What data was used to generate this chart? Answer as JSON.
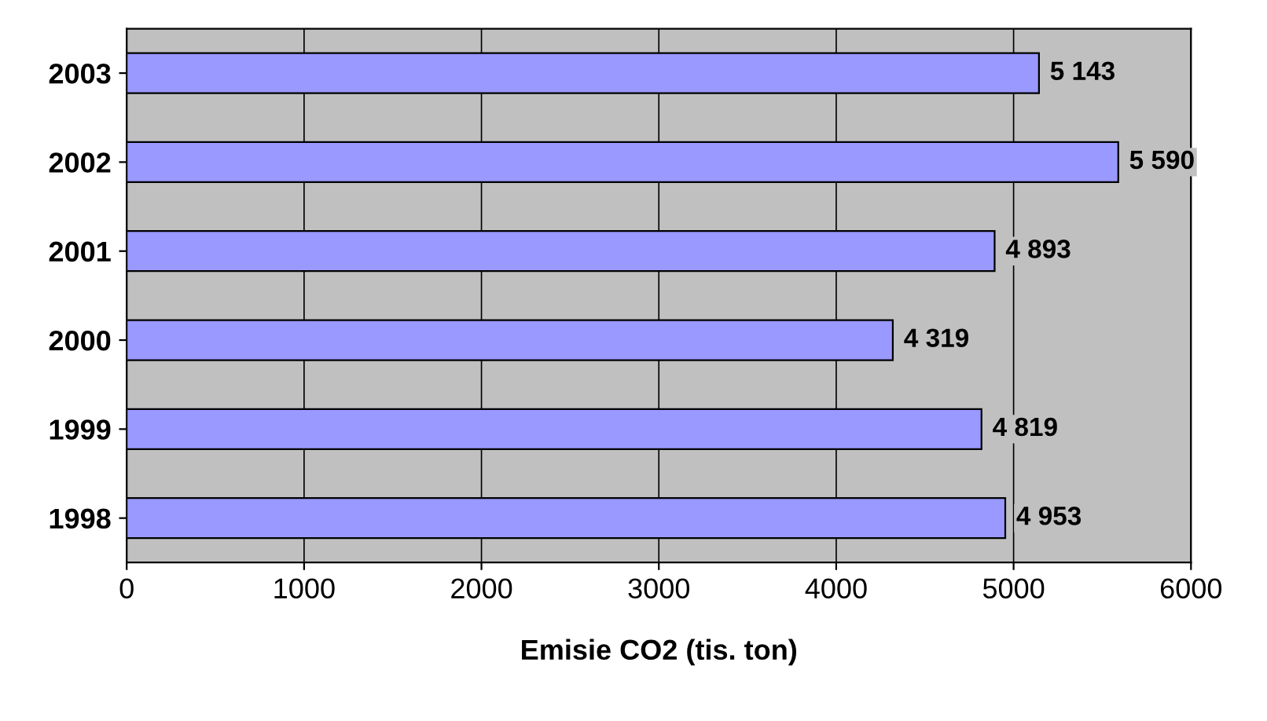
{
  "chart_data": {
    "type": "bar",
    "orientation": "horizontal",
    "xlabel": "Emisie CO2 (tis. ton)",
    "categories": [
      "2003",
      "2002",
      "2001",
      "2000",
      "1999",
      "1998"
    ],
    "values": [
      5143,
      5590,
      4893,
      4319,
      4819,
      4953
    ],
    "value_labels": [
      "5 143",
      "5 590",
      "4 893",
      "4 319",
      "4 819",
      "4 953"
    ],
    "color": "#9999ff",
    "xlim": [
      0,
      6000
    ],
    "xticks": [
      0,
      1000,
      2000,
      3000,
      4000,
      5000,
      6000
    ],
    "grid": "x",
    "legend": false
  }
}
